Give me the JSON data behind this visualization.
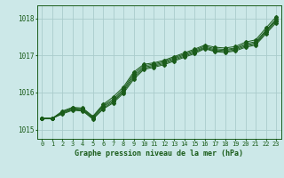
{
  "xlabel": "Graphe pression niveau de la mer (hPa)",
  "background_color": "#cce8e8",
  "grid_color": "#aacccc",
  "line_color": "#1a5c1a",
  "marker_color": "#1a5c1a",
  "xlim": [
    -0.5,
    23.5
  ],
  "ylim": [
    1014.75,
    1018.35
  ],
  "yticks": [
    1015,
    1016,
    1017,
    1018
  ],
  "xticks": [
    0,
    1,
    2,
    3,
    4,
    5,
    6,
    7,
    8,
    9,
    10,
    11,
    12,
    13,
    14,
    15,
    16,
    17,
    18,
    19,
    20,
    21,
    22,
    23
  ],
  "series1": [
    1015.3,
    1015.3,
    1015.42,
    1015.52,
    1015.5,
    1015.28,
    1015.55,
    1015.72,
    1015.98,
    1016.35,
    1016.62,
    1016.68,
    1016.75,
    1016.85,
    1016.95,
    1017.05,
    1017.18,
    1017.1,
    1017.08,
    1017.12,
    1017.22,
    1017.28,
    1017.58,
    1017.88
  ],
  "series2": [
    1015.3,
    1015.3,
    1015.44,
    1015.54,
    1015.52,
    1015.3,
    1015.58,
    1015.75,
    1016.02,
    1016.4,
    1016.65,
    1016.71,
    1016.78,
    1016.88,
    1016.98,
    1017.08,
    1017.2,
    1017.12,
    1017.1,
    1017.15,
    1017.25,
    1017.31,
    1017.62,
    1017.92
  ],
  "series3": [
    1015.3,
    1015.3,
    1015.46,
    1015.56,
    1015.54,
    1015.32,
    1015.62,
    1015.78,
    1016.06,
    1016.45,
    1016.68,
    1016.74,
    1016.81,
    1016.91,
    1017.01,
    1017.11,
    1017.22,
    1017.15,
    1017.13,
    1017.18,
    1017.28,
    1017.34,
    1017.65,
    1017.95
  ],
  "series4": [
    1015.3,
    1015.3,
    1015.48,
    1015.58,
    1015.56,
    1015.34,
    1015.65,
    1015.82,
    1016.1,
    1016.5,
    1016.72,
    1016.77,
    1016.84,
    1016.94,
    1017.04,
    1017.14,
    1017.25,
    1017.18,
    1017.16,
    1017.2,
    1017.32,
    1017.37,
    1017.68,
    1017.98
  ],
  "series_top": [
    1015.3,
    1015.3,
    1015.5,
    1015.6,
    1015.58,
    1015.36,
    1015.68,
    1015.88,
    1016.15,
    1016.55,
    1016.76,
    1016.8,
    1016.87,
    1016.97,
    1017.07,
    1017.17,
    1017.28,
    1017.22,
    1017.2,
    1017.24,
    1017.36,
    1017.42,
    1017.74,
    1018.04
  ]
}
